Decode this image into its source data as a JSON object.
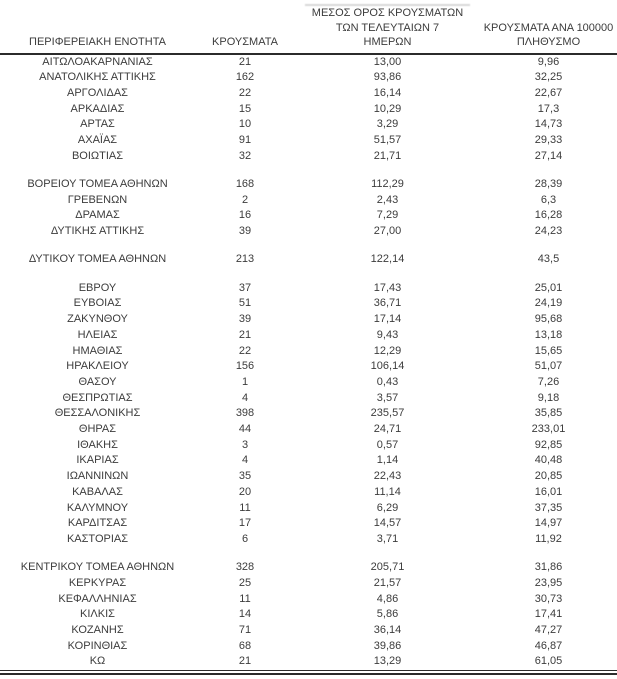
{
  "table": {
    "header": {
      "region": {
        "lines": [
          "ΠΕΡΙΦΕΡΕΙΑΚΗ ΕΝΟΤΗΤΑ"
        ]
      },
      "cases": {
        "lines": [
          "ΚΡΟΥΣΜΑΤΑ"
        ]
      },
      "avg7": {
        "lines": [
          "ΜΕΣΟΣ ΟΡΟΣ ΚΡΟΥΣΜΑΤΩΝ",
          "ΤΩΝ ΤΕΛΕΥΤΑΙΩΝ 7",
          "ΗΜΕΡΩΝ"
        ]
      },
      "per100k": {
        "lines": [
          "ΚΡΟΥΣΜΑΤΑ ΑΝΑ 100000",
          "ΠΛΗΘΥΣΜΟ"
        ]
      }
    },
    "rows": [
      {
        "region": "ΑΙΤΩΛΟΑΚΑΡΝΑΝΙΑΣ",
        "cases": "21",
        "avg_last_7_days": "13,00",
        "per_100k": "9,96"
      },
      {
        "region": "ΑΝΑΤΟΛΙΚΗΣ ΑΤΤΙΚΗΣ",
        "cases": "162",
        "avg_last_7_days": "93,86",
        "per_100k": "32,25"
      },
      {
        "region": "ΑΡΓΟΛΙΔΑΣ",
        "cases": "22",
        "avg_last_7_days": "16,14",
        "per_100k": "22,67"
      },
      {
        "region": "ΑΡΚΑΔΙΑΣ",
        "cases": "15",
        "avg_last_7_days": "10,29",
        "per_100k": "17,3"
      },
      {
        "region": "ΑΡΤΑΣ",
        "cases": "10",
        "avg_last_7_days": "3,29",
        "per_100k": "14,73"
      },
      {
        "region": "ΑΧΑΪΑΣ",
        "cases": "91",
        "avg_last_7_days": "51,57",
        "per_100k": "29,33"
      },
      {
        "region": "ΒΟΙΩΤΙΑΣ",
        "cases": "32",
        "avg_last_7_days": "21,71",
        "per_100k": "27,14"
      },
      {
        "spacer": true
      },
      {
        "region": "ΒΟΡΕΙΟΥ ΤΟΜΕΑ ΑΘΗΝΩΝ",
        "cases": "168",
        "avg_last_7_days": "112,29",
        "per_100k": "28,39"
      },
      {
        "region": "ΓΡΕΒΕΝΩΝ",
        "cases": "2",
        "avg_last_7_days": "2,43",
        "per_100k": "6,3"
      },
      {
        "region": "ΔΡΑΜΑΣ",
        "cases": "16",
        "avg_last_7_days": "7,29",
        "per_100k": "16,28"
      },
      {
        "region": "ΔΥΤΙΚΗΣ ΑΤΤΙΚΗΣ",
        "cases": "39",
        "avg_last_7_days": "27,00",
        "per_100k": "24,23"
      },
      {
        "spacer": true
      },
      {
        "region": "ΔΥΤΙΚΟΥ ΤΟΜΕΑ ΑΘΗΝΩΝ",
        "cases": "213",
        "avg_last_7_days": "122,14",
        "per_100k": "43,5"
      },
      {
        "spacer": true
      },
      {
        "region": "ΕΒΡΟΥ",
        "cases": "37",
        "avg_last_7_days": "17,43",
        "per_100k": "25,01"
      },
      {
        "region": "ΕΥΒΟΙΑΣ",
        "cases": "51",
        "avg_last_7_days": "36,71",
        "per_100k": "24,19"
      },
      {
        "region": "ΖΑΚΥΝΘΟΥ",
        "cases": "39",
        "avg_last_7_days": "17,14",
        "per_100k": "95,68"
      },
      {
        "region": "ΗΛΕΙΑΣ",
        "cases": "21",
        "avg_last_7_days": "9,43",
        "per_100k": "13,18"
      },
      {
        "region": "ΗΜΑΘΙΑΣ",
        "cases": "22",
        "avg_last_7_days": "12,29",
        "per_100k": "15,65"
      },
      {
        "region": "ΗΡΑΚΛΕΙΟΥ",
        "cases": "156",
        "avg_last_7_days": "106,14",
        "per_100k": "51,07"
      },
      {
        "region": "ΘΑΣΟΥ",
        "cases": "1",
        "avg_last_7_days": "0,43",
        "per_100k": "7,26"
      },
      {
        "region": "ΘΕΣΠΡΩΤΙΑΣ",
        "cases": "4",
        "avg_last_7_days": "3,57",
        "per_100k": "9,18"
      },
      {
        "region": "ΘΕΣΣΑΛΟΝΙΚΗΣ",
        "cases": "398",
        "avg_last_7_days": "235,57",
        "per_100k": "35,85"
      },
      {
        "region": "ΘΗΡΑΣ",
        "cases": "44",
        "avg_last_7_days": "24,71",
        "per_100k": "233,01"
      },
      {
        "region": "ΙΘΑΚΗΣ",
        "cases": "3",
        "avg_last_7_days": "0,57",
        "per_100k": "92,85"
      },
      {
        "region": "ΙΚΑΡΙΑΣ",
        "cases": "4",
        "avg_last_7_days": "1,14",
        "per_100k": "40,48"
      },
      {
        "region": "ΙΩΑΝΝΙΝΩΝ",
        "cases": "35",
        "avg_last_7_days": "22,43",
        "per_100k": "20,85"
      },
      {
        "region": "ΚΑΒΑΛΑΣ",
        "cases": "20",
        "avg_last_7_days": "11,14",
        "per_100k": "16,01"
      },
      {
        "region": "ΚΑΛΥΜΝΟΥ",
        "cases": "11",
        "avg_last_7_days": "6,29",
        "per_100k": "37,35"
      },
      {
        "region": "ΚΑΡΔΙΤΣΑΣ",
        "cases": "17",
        "avg_last_7_days": "14,57",
        "per_100k": "14,97"
      },
      {
        "region": "ΚΑΣΤΟΡΙΑΣ",
        "cases": "6",
        "avg_last_7_days": "3,71",
        "per_100k": "11,92"
      },
      {
        "spacer": true
      },
      {
        "region": "ΚΕΝΤΡΙΚΟΥ ΤΟΜΕΑ ΑΘΗΝΩΝ",
        "cases": "328",
        "avg_last_7_days": "205,71",
        "per_100k": "31,86"
      },
      {
        "region": "ΚΕΡΚΥΡΑΣ",
        "cases": "25",
        "avg_last_7_days": "21,57",
        "per_100k": "23,95"
      },
      {
        "region": "ΚΕΦΑΛΛΗΝΙΑΣ",
        "cases": "11",
        "avg_last_7_days": "4,86",
        "per_100k": "30,73"
      },
      {
        "region": "ΚΙΛΚΙΣ",
        "cases": "14",
        "avg_last_7_days": "5,86",
        "per_100k": "17,41"
      },
      {
        "region": "ΚΟΖΑΝΗΣ",
        "cases": "71",
        "avg_last_7_days": "36,14",
        "per_100k": "47,27"
      },
      {
        "region": "ΚΟΡΙΝΘΙΑΣ",
        "cases": "68",
        "avg_last_7_days": "39,86",
        "per_100k": "46,87"
      },
      {
        "region": "ΚΩ",
        "cases": "21",
        "avg_last_7_days": "13,29",
        "per_100k": "61,05"
      }
    ]
  },
  "colors": {
    "text": "#3c3c3c",
    "rule": "#2b2b2b",
    "background": "#ffffff"
  }
}
